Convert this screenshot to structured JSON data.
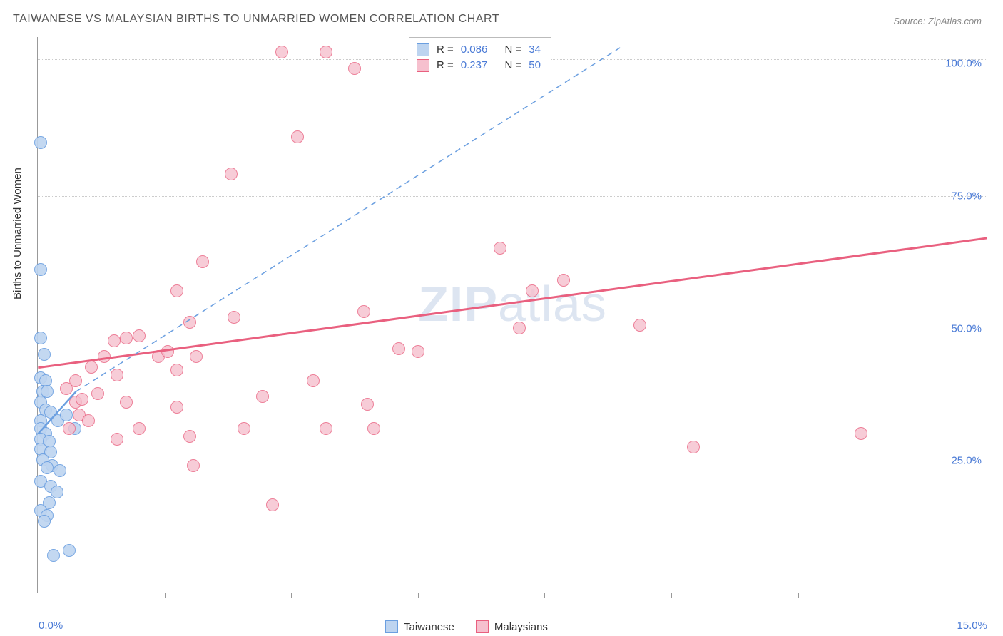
{
  "title": "TAIWANESE VS MALAYSIAN BIRTHS TO UNMARRIED WOMEN CORRELATION CHART",
  "source": "Source: ZipAtlas.com",
  "watermark_bold": "ZIP",
  "watermark_rest": "atlas",
  "y_axis_label": "Births to Unmarried Women",
  "chart": {
    "type": "scatter",
    "background_color": "#ffffff",
    "grid_color": "#cccccc",
    "axis_color": "#999999",
    "xlim": [
      0,
      15
    ],
    "ylim": [
      0,
      105
    ],
    "x_ticks": [
      0,
      2,
      4,
      6,
      8,
      10,
      12,
      14
    ],
    "x_show_labels": {
      "0": "0.0%",
      "15": "15.0%"
    },
    "y_gridlines": [
      25,
      50,
      75,
      100.8
    ],
    "y_labels": {
      "25": "25.0%",
      "50": "50.0%",
      "75": "75.0%",
      "100": "100.0%"
    },
    "marker_radius": 9,
    "marker_border_width": 1.5,
    "tick_label_color": "#4b7bd6",
    "tick_fontsize": 15,
    "title_fontsize": 16,
    "title_color": "#555555"
  },
  "legend": {
    "rows": [
      {
        "r_label": "R =",
        "r_value": "0.086",
        "n_label": "N =",
        "n_value": "34"
      },
      {
        "r_label": "R =",
        "r_value": "0.237",
        "n_label": "N =",
        "n_value": "50"
      }
    ]
  },
  "bottom_legend": [
    {
      "label": "Taiwanese"
    },
    {
      "label": "Malaysians"
    }
  ],
  "series": [
    {
      "name": "Taiwanese",
      "fill": "#bdd4f0",
      "stroke": "#6b9fe0",
      "fill_opacity": 0.55,
      "trend": {
        "x1": 0,
        "y1": 30,
        "x2": 0.6,
        "y2": 38,
        "dashed": false,
        "width": 2.5
      },
      "trend_ext": {
        "x1": 0.6,
        "y1": 38,
        "x2": 9.2,
        "y2": 103,
        "dashed": true,
        "width": 1.5
      },
      "points": [
        [
          0.05,
          85
        ],
        [
          0.05,
          61
        ],
        [
          0.05,
          48
        ],
        [
          0.1,
          45
        ],
        [
          0.05,
          40.5
        ],
        [
          0.12,
          40
        ],
        [
          0.08,
          38
        ],
        [
          0.15,
          38
        ],
        [
          0.05,
          36
        ],
        [
          0.12,
          34.5
        ],
        [
          0.2,
          34
        ],
        [
          0.05,
          32.5
        ],
        [
          0.32,
          32.5
        ],
        [
          0.45,
          33.5
        ],
        [
          0.58,
          31
        ],
        [
          0.05,
          31
        ],
        [
          0.12,
          30
        ],
        [
          0.05,
          29
        ],
        [
          0.18,
          28.5
        ],
        [
          0.05,
          27
        ],
        [
          0.2,
          26.5
        ],
        [
          0.08,
          25
        ],
        [
          0.22,
          24
        ],
        [
          0.15,
          23.5
        ],
        [
          0.35,
          23
        ],
        [
          0.05,
          21
        ],
        [
          0.2,
          20
        ],
        [
          0.3,
          19
        ],
        [
          0.18,
          17
        ],
        [
          0.05,
          15.5
        ],
        [
          0.15,
          14.5
        ],
        [
          0.1,
          13.5
        ],
        [
          0.5,
          8
        ],
        [
          0.25,
          7
        ]
      ]
    },
    {
      "name": "Malaysians",
      "fill": "#f6c0ce",
      "stroke": "#e9607f",
      "fill_opacity": 0.45,
      "trend": {
        "x1": 0,
        "y1": 42.5,
        "x2": 15,
        "y2": 67,
        "dashed": false,
        "width": 3
      },
      "points": [
        [
          3.85,
          102
        ],
        [
          4.55,
          102
        ],
        [
          5.0,
          99
        ],
        [
          4.1,
          86
        ],
        [
          3.05,
          79
        ],
        [
          2.6,
          62.5
        ],
        [
          7.3,
          65
        ],
        [
          8.3,
          59
        ],
        [
          7.8,
          57
        ],
        [
          9.5,
          50.5
        ],
        [
          2.2,
          57
        ],
        [
          3.1,
          52
        ],
        [
          5.15,
          53
        ],
        [
          7.6,
          50
        ],
        [
          1.2,
          47.5
        ],
        [
          1.4,
          48
        ],
        [
          1.6,
          48.5
        ],
        [
          2.4,
          51
        ],
        [
          1.05,
          44.5
        ],
        [
          1.9,
          44.5
        ],
        [
          2.05,
          45.5
        ],
        [
          2.5,
          44.5
        ],
        [
          5.7,
          46
        ],
        [
          6.0,
          45.5
        ],
        [
          0.85,
          42.5
        ],
        [
          1.25,
          41
        ],
        [
          2.2,
          42
        ],
        [
          0.6,
          40
        ],
        [
          0.45,
          38.5
        ],
        [
          0.6,
          36
        ],
        [
          0.7,
          36.5
        ],
        [
          0.95,
          37.5
        ],
        [
          1.4,
          36
        ],
        [
          2.2,
          35
        ],
        [
          3.55,
          37
        ],
        [
          4.35,
          40
        ],
        [
          5.2,
          35.5
        ],
        [
          0.65,
          33.5
        ],
        [
          0.8,
          32.5
        ],
        [
          0.5,
          31
        ],
        [
          1.6,
          31
        ],
        [
          3.25,
          31
        ],
        [
          4.55,
          31
        ],
        [
          5.3,
          31
        ],
        [
          1.25,
          29
        ],
        [
          2.4,
          29.5
        ],
        [
          10.35,
          27.5
        ],
        [
          13.0,
          30
        ],
        [
          2.45,
          24
        ],
        [
          3.7,
          16.5
        ]
      ]
    }
  ]
}
